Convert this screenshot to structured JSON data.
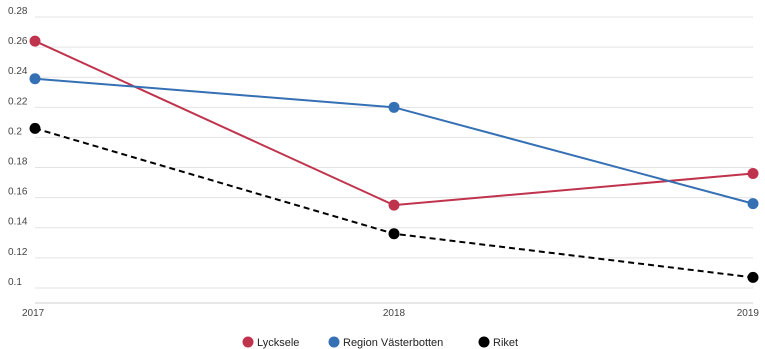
{
  "chart_data": {
    "type": "line",
    "x": [
      "2017",
      "2018",
      "2019"
    ],
    "ylim": [
      0.09,
      0.28
    ],
    "yticks": [
      0.1,
      0.12,
      0.14,
      0.16,
      0.18,
      0.2,
      0.22,
      0.24,
      0.26,
      0.28
    ],
    "ytick_labels": [
      "0.1",
      "0.12",
      "0.14",
      "0.16",
      "0.18",
      "0.2",
      "0.22",
      "0.24",
      "0.26",
      "0.28"
    ],
    "grid": "horizontal",
    "legend_position": "bottom-center",
    "series": [
      {
        "name": "Lycksele",
        "values": [
          0.264,
          0.155,
          0.176
        ],
        "color": "#c0334d",
        "dash": "solid"
      },
      {
        "name": "Region Västerbotten",
        "values": [
          0.239,
          0.22,
          0.156
        ],
        "color": "#3570b5",
        "dash": "solid"
      },
      {
        "name": "Riket",
        "values": [
          0.206,
          0.136,
          0.107
        ],
        "color": "#000000",
        "dash": "dashed"
      }
    ]
  }
}
